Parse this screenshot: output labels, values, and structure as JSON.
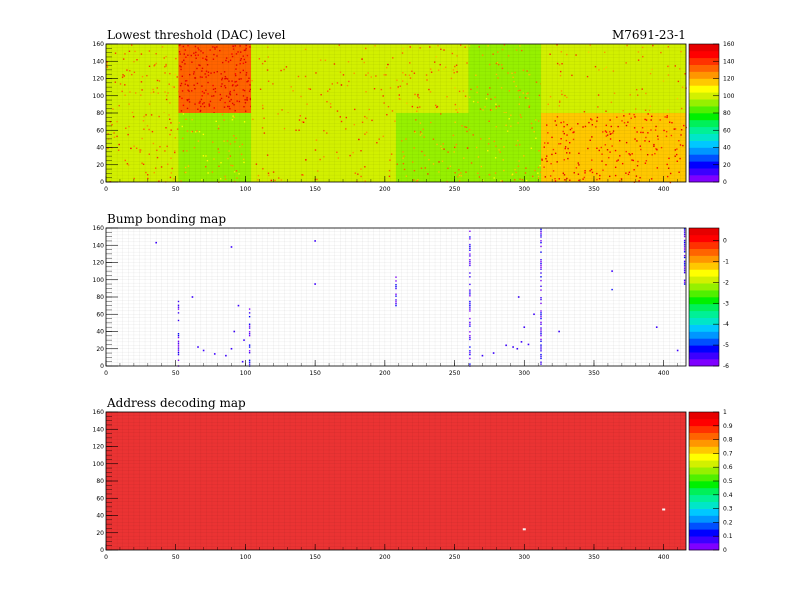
{
  "module_id": "M7691-23-1",
  "chart_data": [
    {
      "type": "heatmap",
      "title": "Lowest threshold (DAC) level",
      "xlim": [
        0,
        416
      ],
      "ylim": [
        0,
        160
      ],
      "x_ticks": [
        0,
        50,
        100,
        150,
        200,
        250,
        300,
        350,
        400
      ],
      "y_ticks": [
        0,
        20,
        40,
        60,
        80,
        100,
        120,
        140,
        160
      ],
      "z_range": [
        0,
        160
      ],
      "colorbar_ticks": [
        0,
        20,
        40,
        60,
        80,
        100,
        120,
        140,
        160
      ],
      "blocks": [
        {
          "x": [
            0,
            52
          ],
          "y": [
            80,
            160
          ],
          "value": 100
        },
        {
          "x": [
            52,
            104
          ],
          "y": [
            80,
            160
          ],
          "value": 130
        },
        {
          "x": [
            104,
            208
          ],
          "y": [
            80,
            160
          ],
          "value": 102
        },
        {
          "x": [
            208,
            260
          ],
          "y": [
            80,
            160
          ],
          "value": 100
        },
        {
          "x": [
            260,
            312
          ],
          "y": [
            80,
            160
          ],
          "value": 92
        },
        {
          "x": [
            312,
            416
          ],
          "y": [
            80,
            160
          ],
          "value": 100
        },
        {
          "x": [
            0,
            52
          ],
          "y": [
            0,
            80
          ],
          "value": 102
        },
        {
          "x": [
            52,
            104
          ],
          "y": [
            0,
            80
          ],
          "value": 88
        },
        {
          "x": [
            104,
            208
          ],
          "y": [
            0,
            80
          ],
          "value": 102
        },
        {
          "x": [
            208,
            260
          ],
          "y": [
            0,
            80
          ],
          "value": 95
        },
        {
          "x": [
            260,
            312
          ],
          "y": [
            0,
            80
          ],
          "value": 90
        },
        {
          "x": [
            312,
            416
          ],
          "y": [
            0,
            80
          ],
          "value": 118
        }
      ]
    },
    {
      "type": "heatmap",
      "title": "Bump bonding map",
      "xlim": [
        0,
        416
      ],
      "ylim": [
        0,
        160
      ],
      "x_ticks": [
        0,
        50,
        100,
        150,
        200,
        250,
        300,
        350,
        400
      ],
      "y_ticks": [
        0,
        20,
        40,
        60,
        80,
        100,
        120,
        140,
        160
      ],
      "z_range": [
        -6,
        0.6
      ],
      "colorbar_ticks": [
        0,
        -1,
        -2,
        -3,
        -4,
        -5,
        -6
      ],
      "columns": [
        {
          "x": 52,
          "y": [
            0,
            75
          ]
        },
        {
          "x": 103,
          "y": [
            0,
            68
          ]
        },
        {
          "x": 208,
          "y": [
            70,
            105
          ]
        },
        {
          "x": 261,
          "y": [
            0,
            160
          ]
        },
        {
          "x": 312,
          "y": [
            0,
            160
          ]
        },
        {
          "x": 363,
          "y": [
            82,
            98
          ]
        },
        {
          "x": 415,
          "y": [
            95,
            160
          ]
        }
      ],
      "points": [
        {
          "x": 36,
          "y": 143
        },
        {
          "x": 66,
          "y": 22
        },
        {
          "x": 70,
          "y": 18
        },
        {
          "x": 78,
          "y": 14
        },
        {
          "x": 86,
          "y": 12
        },
        {
          "x": 90,
          "y": 20
        },
        {
          "x": 92,
          "y": 40
        },
        {
          "x": 95,
          "y": 70
        },
        {
          "x": 98,
          "y": 5
        },
        {
          "x": 99,
          "y": 30
        },
        {
          "x": 62,
          "y": 80
        },
        {
          "x": 90,
          "y": 138
        },
        {
          "x": 150,
          "y": 145
        },
        {
          "x": 150,
          "y": 95
        },
        {
          "x": 270,
          "y": 12
        },
        {
          "x": 278,
          "y": 15
        },
        {
          "x": 287,
          "y": 24
        },
        {
          "x": 292,
          "y": 22
        },
        {
          "x": 295,
          "y": 20
        },
        {
          "x": 298,
          "y": 28
        },
        {
          "x": 300,
          "y": 45
        },
        {
          "x": 303,
          "y": 25
        },
        {
          "x": 307,
          "y": 60
        },
        {
          "x": 296,
          "y": 80
        },
        {
          "x": 325,
          "y": 40
        },
        {
          "x": 363,
          "y": 110
        },
        {
          "x": 395,
          "y": 45
        },
        {
          "x": 410,
          "y": 18
        }
      ]
    },
    {
      "type": "heatmap",
      "title": "Address decoding map",
      "xlim": [
        0,
        416
      ],
      "ylim": [
        0,
        160
      ],
      "x_ticks": [
        0,
        50,
        100,
        150,
        200,
        250,
        300,
        350,
        400
      ],
      "y_ticks": [
        0,
        20,
        40,
        60,
        80,
        100,
        120,
        140,
        160
      ],
      "z_range": [
        0,
        1
      ],
      "colorbar_ticks": [
        0,
        0.1,
        0.2,
        0.3,
        0.4,
        0.5,
        0.6,
        0.7,
        0.8,
        0.9,
        1
      ],
      "fill_value": 1,
      "points": [
        {
          "x": 300,
          "y": 24
        },
        {
          "x": 400,
          "y": 47
        }
      ]
    }
  ]
}
